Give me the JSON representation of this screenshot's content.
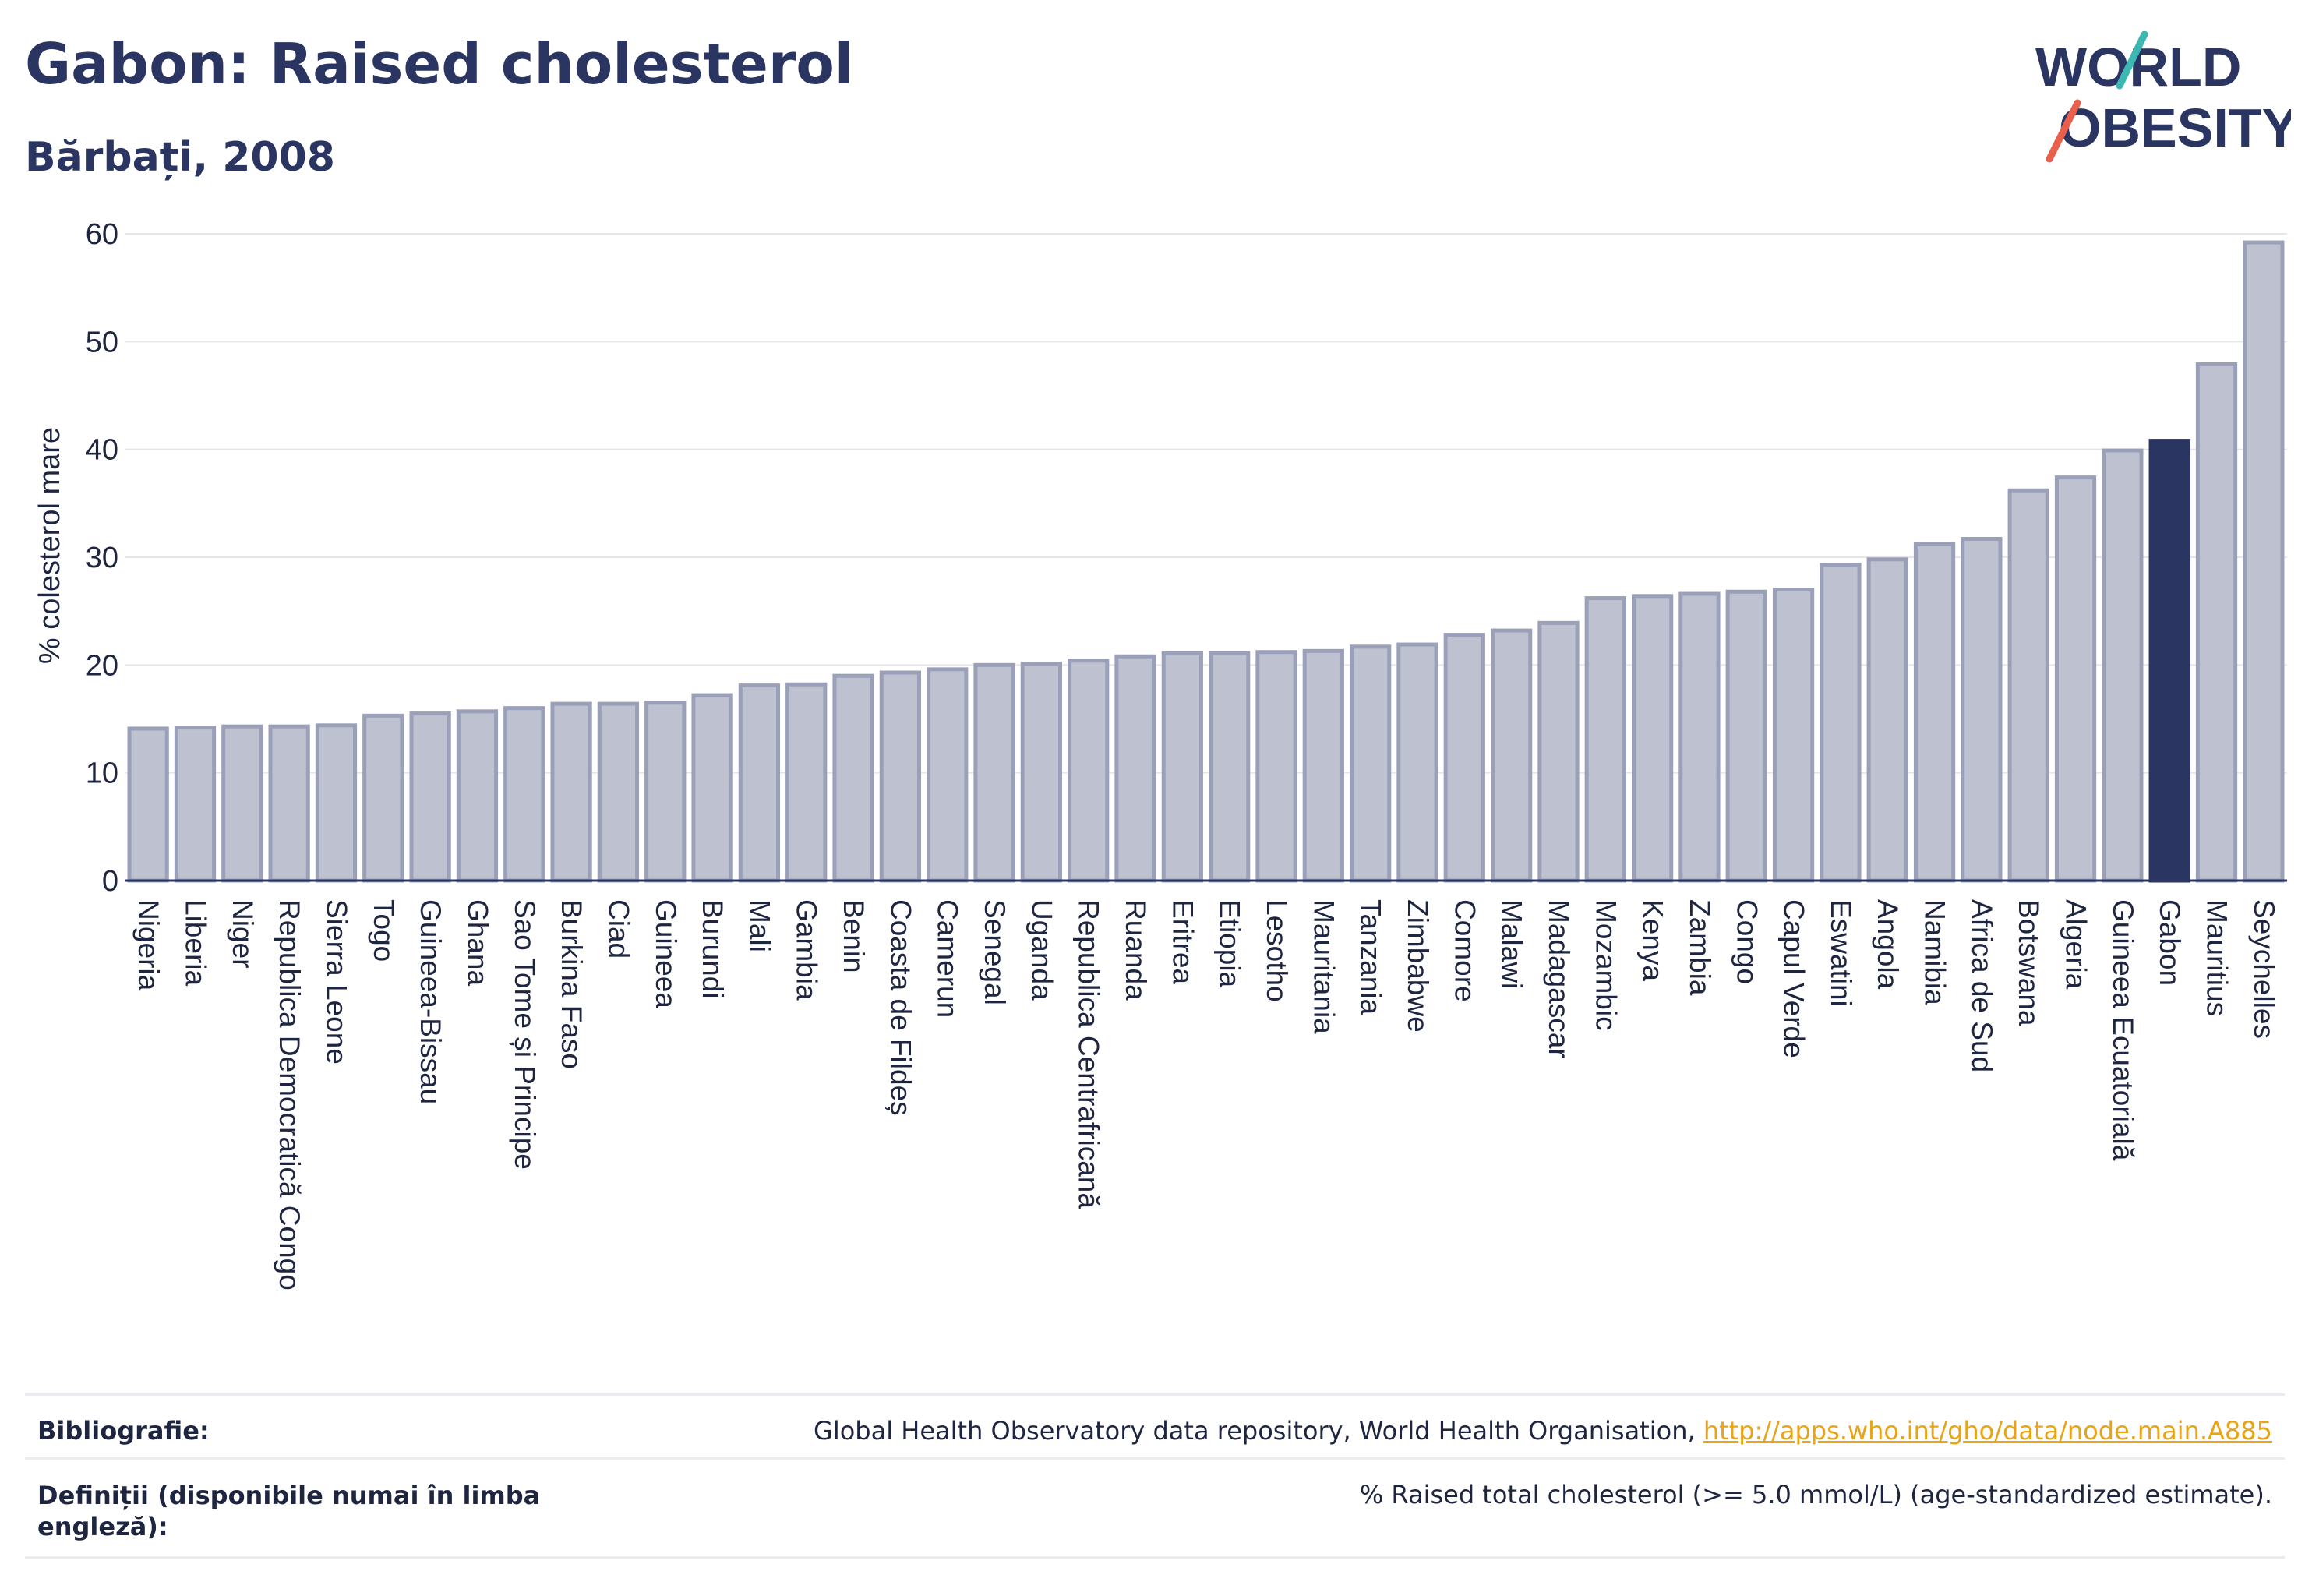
{
  "header": {
    "title": "Gabon: Raised cholesterol",
    "subtitle": "Bărbați, 2008"
  },
  "logo": {
    "line1": "WORLD",
    "line2": "OBESITY"
  },
  "colors": {
    "bar_fill": "#bec1d0",
    "bar_stroke": "#9aa0b8",
    "highlight": "#2b3562",
    "text": "#2b3562",
    "grid": "#e6e6ea",
    "link": "#e8a317",
    "logo_teal": "#3cb8b2",
    "logo_coral": "#e8604c"
  },
  "chart_data": {
    "type": "bar",
    "title": "Gabon: Raised cholesterol",
    "subtitle": "Bărbați, 2008",
    "xlabel": "",
    "ylabel": "% colesterol mare",
    "ylim": [
      0,
      60
    ],
    "yticks": [
      0,
      10,
      20,
      30,
      40,
      50,
      60
    ],
    "grid": true,
    "highlight": "Gabon",
    "categories": [
      "Nigeria",
      "Liberia",
      "Niger",
      "Republica Democratică Congo",
      "Sierra Leone",
      "Togo",
      "Guineea-Bissau",
      "Ghana",
      "Sao Tome și Principe",
      "Burkina Faso",
      "Ciad",
      "Guineea",
      "Burundi",
      "Mali",
      "Gambia",
      "Benin",
      "Coasta de Fildeș",
      "Camerun",
      "Senegal",
      "Uganda",
      "Republica Centrafricană",
      "Ruanda",
      "Eritrea",
      "Etiopia",
      "Lesotho",
      "Mauritania",
      "Tanzania",
      "Zimbabwe",
      "Comore",
      "Malawi",
      "Madagascar",
      "Mozambic",
      "Kenya",
      "Zambia",
      "Congo",
      "Capul Verde",
      "Eswatini",
      "Angola",
      "Namibia",
      "Africa de Sud",
      "Botswana",
      "Algeria",
      "Guineea Ecuatorială",
      "Gabon",
      "Mauritius",
      "Seychelles"
    ],
    "values": [
      14.1,
      14.2,
      14.3,
      14.3,
      14.4,
      15.3,
      15.5,
      15.7,
      16.0,
      16.4,
      16.4,
      16.5,
      17.2,
      18.1,
      18.2,
      19.0,
      19.3,
      19.6,
      20.0,
      20.1,
      20.4,
      20.8,
      21.1,
      21.1,
      21.2,
      21.3,
      21.7,
      21.9,
      22.8,
      23.2,
      23.9,
      26.2,
      26.4,
      26.6,
      26.8,
      27.0,
      29.3,
      29.8,
      31.2,
      31.7,
      36.2,
      37.4,
      39.9,
      40.8,
      47.9,
      59.2
    ]
  },
  "footer": {
    "bibliography_label": "Bibliografie:",
    "bibliography_text": "Global Health Observatory data repository, World Health Organisation, ",
    "bibliography_link": "http://apps.who.int/gho/data/node.main.A885",
    "definitions_label_line1": "Definiții (disponibile numai în limba",
    "definitions_label_line2": "engleză):",
    "definitions_text": "% Raised total cholesterol (>= 5.0 mmol/L) (age-standardized estimate)."
  }
}
